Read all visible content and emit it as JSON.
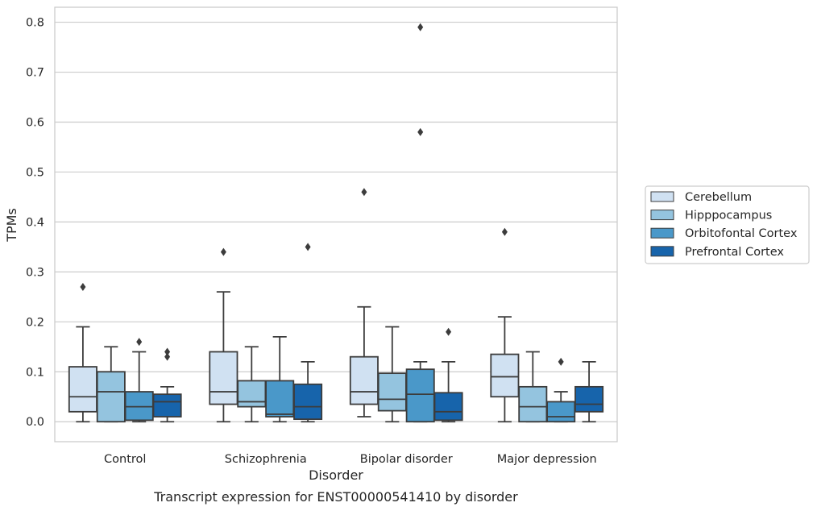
{
  "chart_data": {
    "type": "boxplot",
    "title": "Transcript expression for ENST00000541410 by disorder",
    "xlabel": "Disorder",
    "ylabel": "TPMs",
    "ylim": [
      -0.04,
      0.83
    ],
    "yticks": [
      "0.0",
      "0.1",
      "0.2",
      "0.3",
      "0.4",
      "0.5",
      "0.6",
      "0.7",
      "0.8"
    ],
    "categories": [
      "Control",
      "Schizophrenia",
      "Bipolar disorder",
      "Major depression"
    ],
    "grid": true,
    "legend_position": "right",
    "series": [
      {
        "name": "Cerebellum",
        "color": "#d0e1f2",
        "boxes": [
          {
            "whislo": 0.0,
            "q1": 0.02,
            "med": 0.05,
            "q3": 0.11,
            "whishi": 0.19,
            "fliers": [
              0.27
            ]
          },
          {
            "whislo": 0.0,
            "q1": 0.035,
            "med": 0.06,
            "q3": 0.14,
            "whishi": 0.26,
            "fliers": [
              0.34
            ]
          },
          {
            "whislo": 0.01,
            "q1": 0.035,
            "med": 0.06,
            "q3": 0.13,
            "whishi": 0.23,
            "fliers": [
              0.46
            ]
          },
          {
            "whislo": 0.0,
            "q1": 0.05,
            "med": 0.09,
            "q3": 0.135,
            "whishi": 0.21,
            "fliers": [
              0.38
            ]
          }
        ]
      },
      {
        "name": "Hipppocampus",
        "color": "#94c4df",
        "boxes": [
          {
            "whislo": 0.0,
            "q1": 0.0,
            "med": 0.06,
            "q3": 0.1,
            "whishi": 0.15,
            "fliers": []
          },
          {
            "whislo": 0.0,
            "q1": 0.03,
            "med": 0.04,
            "q3": 0.082,
            "whishi": 0.15,
            "fliers": []
          },
          {
            "whislo": 0.0,
            "q1": 0.022,
            "med": 0.045,
            "q3": 0.097,
            "whishi": 0.19,
            "fliers": []
          },
          {
            "whislo": 0.0,
            "q1": 0.0,
            "med": 0.03,
            "q3": 0.07,
            "whishi": 0.14,
            "fliers": []
          }
        ]
      },
      {
        "name": "Orbitofontal Cortex",
        "color": "#4a98c9",
        "boxes": [
          {
            "whislo": 0.0,
            "q1": 0.003,
            "med": 0.03,
            "q3": 0.06,
            "whishi": 0.14,
            "fliers": [
              0.16
            ]
          },
          {
            "whislo": 0.0,
            "q1": 0.01,
            "med": 0.015,
            "q3": 0.082,
            "whishi": 0.17,
            "fliers": []
          },
          {
            "whislo": 0.0,
            "q1": 0.0,
            "med": 0.055,
            "q3": 0.105,
            "whishi": 0.12,
            "fliers": [
              0.58,
              0.79
            ]
          },
          {
            "whislo": 0.0,
            "q1": 0.0,
            "med": 0.01,
            "q3": 0.04,
            "whishi": 0.06,
            "fliers": [
              0.12
            ]
          }
        ]
      },
      {
        "name": "Prefrontal Cortex",
        "color": "#1764ab",
        "boxes": [
          {
            "whislo": 0.0,
            "q1": 0.01,
            "med": 0.04,
            "q3": 0.055,
            "whishi": 0.07,
            "fliers": [
              0.13,
              0.14
            ]
          },
          {
            "whislo": 0.0,
            "q1": 0.005,
            "med": 0.03,
            "q3": 0.075,
            "whishi": 0.12,
            "fliers": [
              0.35
            ]
          },
          {
            "whislo": 0.0,
            "q1": 0.003,
            "med": 0.02,
            "q3": 0.058,
            "whishi": 0.12,
            "fliers": [
              0.18
            ]
          },
          {
            "whislo": 0.0,
            "q1": 0.02,
            "med": 0.035,
            "q3": 0.07,
            "whishi": 0.12,
            "fliers": []
          }
        ]
      }
    ]
  }
}
